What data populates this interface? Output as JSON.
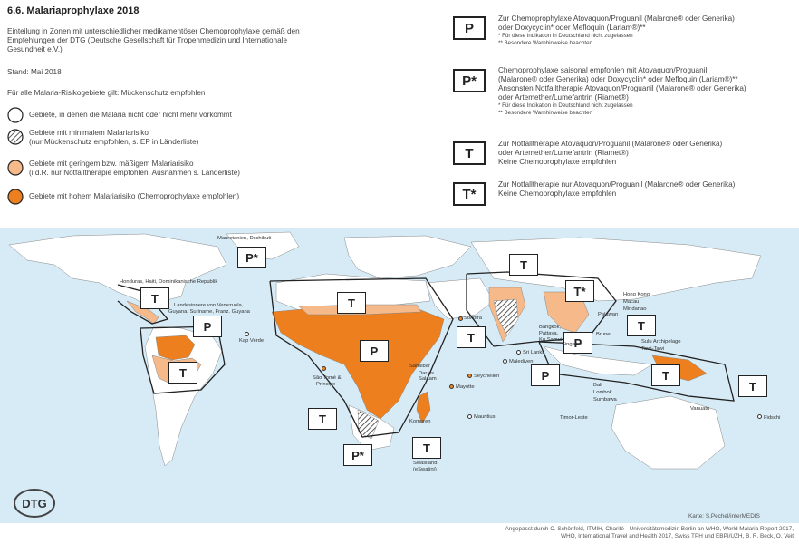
{
  "title": "6.6. Malariaprophylaxe 2018",
  "intro": "Einteilung in Zonen mit unterschiedlicher medikamentöser Chemoprophylaxe gemäß den Empfehlungen der DTG (Deutsche Gesellschaft für Tropenmedizin und Internationale Gesundheit e.V.)",
  "stand": "Stand: Mai 2018",
  "all_areas": "Für alle Malaria-Risikogebiete gilt: Mückenschutz empfohlen",
  "colors": {
    "none": "#ffffff",
    "low": "#f5b98a",
    "high": "#ee7f1e",
    "sea": "#d6ebf6",
    "border": "#222222"
  },
  "legend": [
    {
      "icon": "white-circle-icon",
      "text": "Gebiete, in denen die Malaria nicht oder nicht mehr vorkommt"
    },
    {
      "icon": "hatched-circle-icon",
      "line1": "Gebiete mit minimalem Malariarisiko",
      "line2": "(nur Mückenschutz empfohlen, s. EP in Länderliste)"
    },
    {
      "icon": "light-orange-circle-icon",
      "line1": "Gebiete mit geringem bzw. mäßigem Malariarisiko",
      "line2": "(i.d.R. nur Notfalltherapie empfohlen, Ausnahmen s. Länderliste)"
    },
    {
      "icon": "orange-circle-icon",
      "text": "Gebiete mit hohem Malariarisiko (Chemoprophylaxe empfohlen)"
    }
  ],
  "codes": [
    {
      "label": "P",
      "lines": [
        "Zur Chemoprophylaxe Atovaquon/Proguanil (Malarone® oder Generika)",
        "oder Doxycyclin* oder Mefloquin (Lariam®)**"
      ],
      "notes": [
        "*   Für diese Indikation in Deutschland nicht zugelassen",
        "**  Besondere Warnhinweise beachten"
      ]
    },
    {
      "label": "P*",
      "lines": [
        "Chemoprophylaxe saisonal empfohlen mit Atovaquon/Proguanil",
        "(Malarone® oder Generika) oder Doxycyclin* oder Mefloquin (Lariam®)**",
        "Ansonsten Notfalltherapie Atovaquon/Proguanil (Malarone® oder Generika)",
        "oder Artemether/Lumefantrin (Riamet®)"
      ],
      "notes": [
        "*   Für diese Indikation in Deutschland nicht zugelassen",
        "**  Besondere Warnhinweise beachten"
      ]
    },
    {
      "label": "T",
      "lines": [
        "Zur Notfalltherapie Atovaquon/Proguanil (Malarone® oder Generika)",
        "oder Artemether/Lumefantrin (Riamet®)",
        "Keine Chemoprophylaxe empfohlen"
      ]
    },
    {
      "label": "T*",
      "lines": [
        "Zur Notfalltherapie nur Atovaquon/Proguanil (Malarone® oder Generika)",
        "Keine Chemoprophylaxe empfohlen"
      ]
    }
  ],
  "map_boxes": [
    "T",
    "P",
    "T",
    "P*",
    "T",
    "P",
    "T",
    "T",
    "T*",
    "T",
    "P",
    "P",
    "T",
    "T",
    "T",
    "P*",
    "T"
  ],
  "place_labels": {
    "mauretanien": "Mauretanien, Dschibuti",
    "honduras": "Honduras, Haiti, Dominikanische Republik",
    "venezuela": "Landesinnere von Venezuela,",
    "guyana": "Guyana, Suriname, Franz. Guyana",
    "kapverde": "Kap Verde",
    "saotome1": "São Tomé &",
    "saotome2": "Príncipe",
    "sansibar": "Sansibar",
    "dares1": "Dar es",
    "dares2": "Salaam",
    "komoren": "Komoren",
    "mayotte": "Mayotte",
    "seychellen": "Seychellen",
    "mauritius": "Mauritius",
    "sokotra": "Sokotra",
    "malediven": "Malediven",
    "srilanka": "Sri Lanka",
    "bangkok1": "Bangkok,",
    "bangkok2": "Pattaya,",
    "bangkok3": "Ko Samui",
    "singapur": "Singapur",
    "bali": "Bali",
    "lombok": "Lombok",
    "sumbawa": "Sumbawa",
    "timor": "Timor-Leste",
    "hongkong": "Hong Kong",
    "macau": "Macau",
    "mindanao": "Mindanao",
    "palawan": "Palawan",
    "brunei": "Brunei",
    "sulu": "Sulu Archipelago",
    "tawi": "Tawi-Tawi",
    "vanuatu": "Vanuatu",
    "fidschi": "Fidschi",
    "swasiland1": "Swasiland",
    "swasiland2": "(eSwatini)"
  },
  "karte": "Karte: S.Pechel/interMEDIS",
  "credits": [
    "Angepasst durch C. Schönfeld, ITMIH, Charité - Universitätsmedizin Berlin an WHO, World Malaria Report 2017,",
    "WHO, International Travel and Health 2017, Swiss TPH und EBPI/UZH, B. R. Beck, O. Veit"
  ],
  "logo_text": "DTG"
}
